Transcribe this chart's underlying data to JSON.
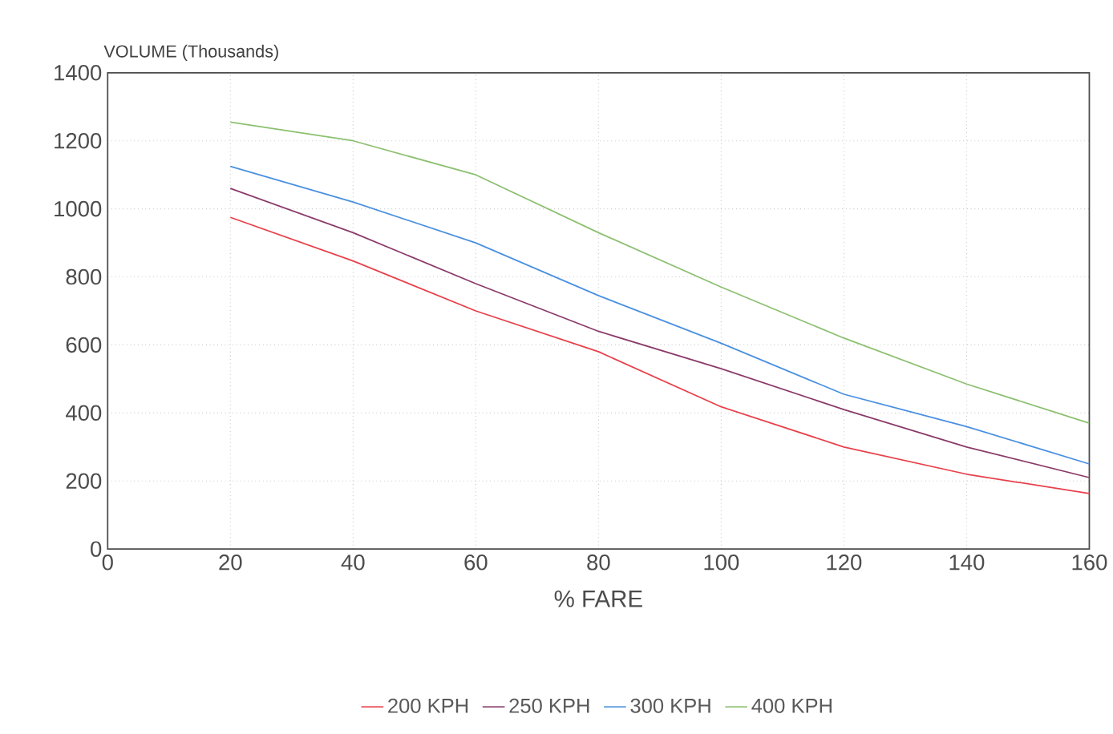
{
  "chart_data": {
    "type": "line",
    "ylabel": "VOLUME (Thousands)",
    "xlabel": "% FARE",
    "x": [
      20,
      40,
      60,
      80,
      100,
      120,
      140,
      160
    ],
    "series": [
      {
        "name": "200 KPH",
        "color": "#e8404a",
        "values": [
          975,
          847,
          700,
          580,
          418,
          300,
          220,
          163
        ]
      },
      {
        "name": "250 KPH",
        "color": "#8a3a6a",
        "values": [
          1060,
          930,
          780,
          640,
          530,
          410,
          300,
          210
        ]
      },
      {
        "name": "300 KPH",
        "color": "#4a90e0",
        "values": [
          1125,
          1020,
          900,
          745,
          605,
          455,
          360,
          250
        ]
      },
      {
        "name": "400 KPH",
        "color": "#8cc070",
        "values": [
          1255,
          1200,
          1100,
          930,
          770,
          620,
          485,
          370
        ]
      }
    ],
    "xlim": [
      0,
      160
    ],
    "xticks": [
      0,
      20,
      40,
      60,
      80,
      100,
      120,
      140,
      160
    ],
    "ylim": [
      0,
      1400
    ],
    "yticks": [
      0,
      200,
      400,
      600,
      800,
      1000,
      1200,
      1400
    ],
    "grid": true,
    "legend": "bottom",
    "marker": "none",
    "line_style": "solid"
  }
}
